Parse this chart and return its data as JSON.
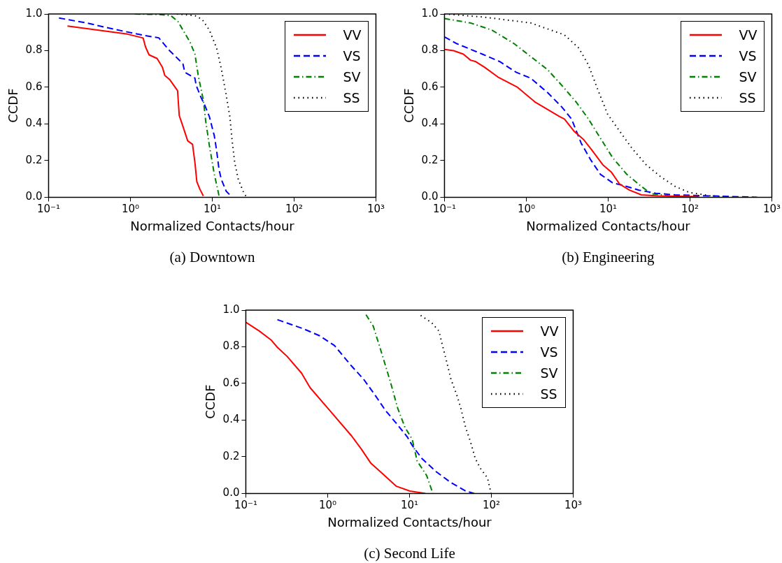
{
  "chart_data": [
    {
      "type": "line",
      "annotations": [
        "(a) Downtown"
      ],
      "xlabel": "Normalized Contacts/hour",
      "ylabel": "CCDF",
      "log": "x",
      "legend": "top right",
      "xlim": [
        0.1,
        1000
      ],
      "ylim": [
        0,
        1
      ],
      "xticks": [
        {
          "value": 0.1,
          "label": "10⁻¹"
        },
        {
          "value": 1,
          "label": "10⁰"
        },
        {
          "value": 10,
          "label": "10¹"
        },
        {
          "value": 100,
          "label": "10²"
        },
        {
          "value": 1000,
          "label": "10³"
        }
      ],
      "yticks": [
        {
          "value": 0,
          "label": "0.0"
        },
        {
          "value": 0.2,
          "label": "0.2"
        },
        {
          "value": 0.4,
          "label": "0.4"
        },
        {
          "value": 0.6,
          "label": "0.6"
        },
        {
          "value": 0.8,
          "label": "0.8"
        },
        {
          "value": 1,
          "label": "1.0"
        }
      ],
      "series": [
        {
          "name": "VV",
          "color": "#ff0000",
          "line_style": "solid",
          "x": [
            0.17,
            0.92,
            1.43,
            1.53,
            1.69,
            2.12,
            2.46,
            2.63,
            3.01,
            3.77,
            3.95,
            4.38,
            5.01,
            5.74,
            6.14,
            6.48,
            7.03,
            7.78
          ],
          "values": [
            0.934,
            0.89,
            0.869,
            0.82,
            0.777,
            0.757,
            0.709,
            0.665,
            0.643,
            0.581,
            0.446,
            0.387,
            0.308,
            0.289,
            0.19,
            0.085,
            0.046,
            0.007
          ]
        },
        {
          "name": "VS",
          "color": "#0000ff",
          "line_style": "dashed",
          "x": [
            0.134,
            0.29,
            0.66,
            1.48,
            2.22,
            2.46,
            3.01,
            3.57,
            4.38,
            4.62,
            6.14,
            6.36,
            7.28,
            8.05,
            9.22,
            10.6,
            11.3,
            12.1,
            12.9,
            14.8,
            16.9
          ],
          "values": [
            0.978,
            0.951,
            0.915,
            0.883,
            0.87,
            0.846,
            0.8,
            0.768,
            0.728,
            0.682,
            0.65,
            0.61,
            0.545,
            0.505,
            0.44,
            0.335,
            0.256,
            0.151,
            0.098,
            0.033,
            0.007
          ]
        },
        {
          "name": "SV",
          "color": "#008000",
          "line_style": "dashdot",
          "x": [
            1.13,
            2.22,
            3.12,
            3.82,
            5.36,
            6.14,
            6.79,
            7.78,
            8.33,
            9.22,
            10.6,
            11.7,
            12.1
          ],
          "values": [
            1.0,
            0.997,
            0.991,
            0.958,
            0.846,
            0.781,
            0.656,
            0.531,
            0.413,
            0.282,
            0.125,
            0.039,
            0.007
          ]
        },
        {
          "name": "SS",
          "color": "#000000",
          "line_style": "dotted",
          "x": [
            3.7,
            6.14,
            7.52,
            9.22,
            11.3,
            12.9,
            14.8,
            16.4,
            17.5,
            18.8,
            20.8,
            23.8,
            26.3
          ],
          "values": [
            1.0,
            0.991,
            0.971,
            0.912,
            0.814,
            0.702,
            0.558,
            0.44,
            0.308,
            0.19,
            0.098,
            0.033,
            0.0
          ]
        }
      ]
    },
    {
      "type": "line",
      "annotations": [
        "(b) Engineering"
      ],
      "xlabel": "Normalized Contacts/hour",
      "ylabel": "CCDF",
      "log": "x",
      "legend": "top right",
      "xlim": [
        0.1,
        1000
      ],
      "ylim": [
        0,
        1
      ],
      "xticks": [
        {
          "value": 0.1,
          "label": "10⁻¹"
        },
        {
          "value": 1,
          "label": "10⁰"
        },
        {
          "value": 10,
          "label": "10¹"
        },
        {
          "value": 100,
          "label": "10²"
        },
        {
          "value": 1000,
          "label": "10³"
        }
      ],
      "yticks": [
        {
          "value": 0,
          "label": "0.0"
        },
        {
          "value": 0.2,
          "label": "0.2"
        },
        {
          "value": 0.4,
          "label": "0.4"
        },
        {
          "value": 0.6,
          "label": "0.6"
        },
        {
          "value": 0.8,
          "label": "0.8"
        },
        {
          "value": 1,
          "label": "1.0"
        }
      ],
      "series": [
        {
          "name": "VV",
          "color": "#ff0000",
          "line_style": "solid",
          "x": [
            0.1,
            0.129,
            0.17,
            0.208,
            0.238,
            0.31,
            0.45,
            0.78,
            1.29,
            2.55,
            2.92,
            3.82,
            5.01,
            6.35,
            8.61,
            10.9,
            13.8,
            18.2,
            25.5,
            40.9,
            129
          ],
          "values": [
            0.807,
            0.8,
            0.781,
            0.748,
            0.741,
            0.709,
            0.656,
            0.6,
            0.518,
            0.44,
            0.427,
            0.361,
            0.315,
            0.256,
            0.177,
            0.138,
            0.072,
            0.039,
            0.013,
            0.007,
            0.003
          ]
        },
        {
          "name": "VS",
          "color": "#0000ff",
          "line_style": "dashed",
          "x": [
            0.1,
            0.138,
            0.29,
            0.47,
            0.75,
            1.13,
            1.82,
            2.72,
            3.57,
            4.68,
            6.14,
            8.05,
            11.3,
            14.8,
            23.8,
            38.2,
            65.8,
            182,
            658
          ],
          "values": [
            0.875,
            0.84,
            0.781,
            0.741,
            0.682,
            0.65,
            0.571,
            0.492,
            0.427,
            0.295,
            0.203,
            0.125,
            0.079,
            0.066,
            0.039,
            0.022,
            0.013,
            0.007,
            0.0
          ]
        },
        {
          "name": "SV",
          "color": "#008000",
          "line_style": "dashdot",
          "x": [
            0.1,
            0.208,
            0.38,
            0.7,
            1.13,
            1.82,
            2.72,
            4.09,
            5.74,
            8.05,
            11.3,
            16.9,
            25.5,
            33.4,
            65.8,
            129
          ],
          "values": [
            0.975,
            0.951,
            0.912,
            0.84,
            0.768,
            0.696,
            0.61,
            0.518,
            0.427,
            0.322,
            0.217,
            0.125,
            0.059,
            0.02,
            0.004,
            0.0
          ]
        },
        {
          "name": "SS",
          "color": "#000000",
          "line_style": "dotted",
          "x": [
            0.1,
            0.29,
            1.13,
            2.92,
            4.38,
            5.74,
            7.52,
            9.86,
            13.8,
            19.4,
            29.2,
            43.8,
            65.8,
            98.6,
            182,
            357
          ],
          "values": [
            1.0,
            0.984,
            0.951,
            0.886,
            0.814,
            0.722,
            0.584,
            0.453,
            0.361,
            0.269,
            0.177,
            0.112,
            0.059,
            0.026,
            0.007,
            0.0
          ]
        }
      ]
    },
    {
      "type": "line",
      "annotations": [
        "(c) Second Life"
      ],
      "xlabel": "Normalized Contacts/hour",
      "ylabel": "CCDF",
      "log": "x",
      "legend": "top right",
      "xlim": [
        0.1,
        1000
      ],
      "ylim": [
        0,
        1
      ],
      "xticks": [
        {
          "value": 0.1,
          "label": "10⁻¹"
        },
        {
          "value": 1,
          "label": "10⁰"
        },
        {
          "value": 10,
          "label": "10¹"
        },
        {
          "value": 100,
          "label": "10²"
        },
        {
          "value": 1000,
          "label": "10³"
        }
      ],
      "yticks": [
        {
          "value": 0,
          "label": "0.0"
        },
        {
          "value": 0.2,
          "label": "0.2"
        },
        {
          "value": 0.4,
          "label": "0.4"
        },
        {
          "value": 0.6,
          "label": "0.6"
        },
        {
          "value": 0.8,
          "label": "0.8"
        },
        {
          "value": 1,
          "label": "1.0"
        }
      ],
      "series": [
        {
          "name": "VV",
          "color": "#ff0000",
          "line_style": "solid",
          "x": [
            0.1,
            0.146,
            0.205,
            0.243,
            0.319,
            0.48,
            0.61,
            1.06,
            1.95,
            2.57,
            3.38,
            4.75,
            6.92,
            10.1,
            15.7
          ],
          "values": [
            0.934,
            0.886,
            0.836,
            0.797,
            0.748,
            0.656,
            0.577,
            0.453,
            0.315,
            0.243,
            0.164,
            0.105,
            0.039,
            0.013,
            0.0
          ]
        },
        {
          "name": "VS",
          "color": "#0000ff",
          "line_style": "dashed",
          "x": [
            0.243,
            0.5,
            0.8,
            1.21,
            1.95,
            2.75,
            3.87,
            5.08,
            7.16,
            9.4,
            10.8,
            14.2,
            21.3,
            32.1,
            48.4,
            61.5
          ],
          "values": [
            0.948,
            0.899,
            0.86,
            0.807,
            0.696,
            0.623,
            0.531,
            0.453,
            0.374,
            0.308,
            0.262,
            0.19,
            0.118,
            0.059,
            0.013,
            0.0
          ]
        },
        {
          "name": "SV",
          "color": "#008000",
          "line_style": "dashdot",
          "x": [
            2.94,
            3.61,
            4.75,
            5.83,
            7.16,
            8.79,
            10.8,
            12.4,
            16.2,
            19.3
          ],
          "values": [
            0.975,
            0.912,
            0.741,
            0.61,
            0.466,
            0.361,
            0.295,
            0.177,
            0.098,
            0.0
          ]
        },
        {
          "name": "SS",
          "color": "#000000",
          "line_style": "dotted",
          "x": [
            13.7,
            18.6,
            22.9,
            25.3,
            28.1,
            32.1,
            38.2,
            42.3,
            48.4,
            55.6,
            63.7,
            73.1,
            89.7,
            99.3
          ],
          "values": [
            0.971,
            0.932,
            0.886,
            0.807,
            0.728,
            0.623,
            0.531,
            0.466,
            0.361,
            0.282,
            0.19,
            0.138,
            0.085,
            0.0
          ]
        }
      ]
    }
  ]
}
